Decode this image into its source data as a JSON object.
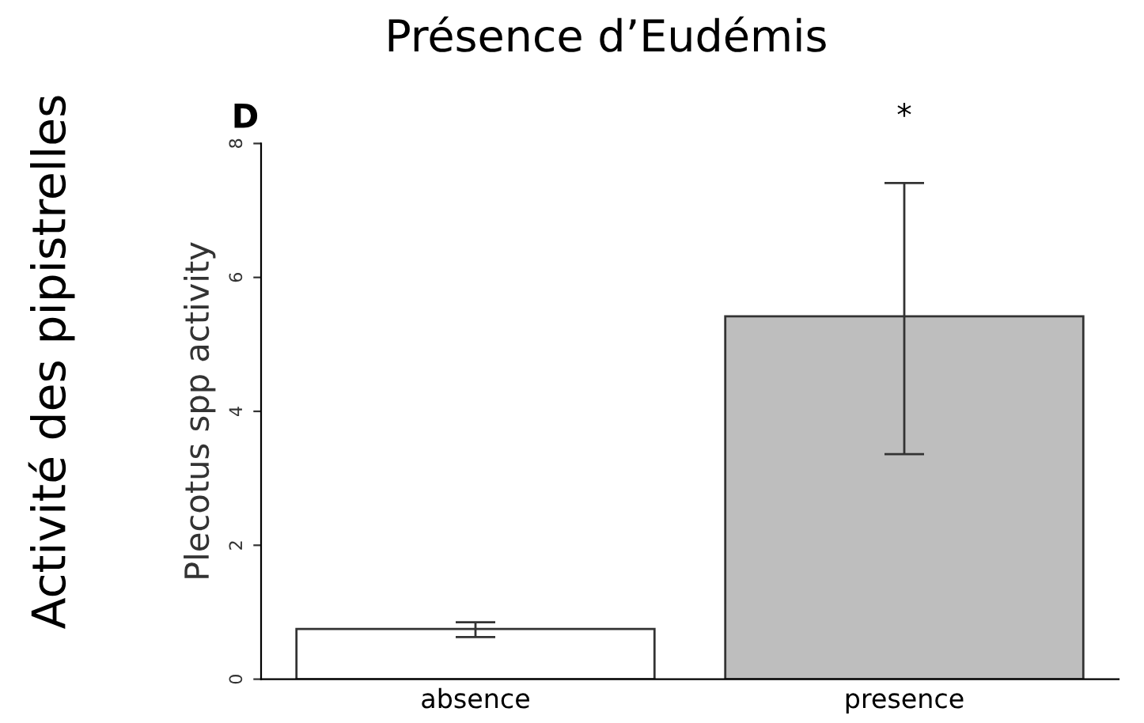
{
  "chart_data": {
    "type": "bar",
    "title": "Présence d’Eudémis",
    "ylabel": "Plecotus spp activity",
    "categories": [
      "absence",
      "presence"
    ],
    "values": [
      0.75,
      5.42
    ],
    "colors": [
      "#ffffff",
      "#bebebe"
    ],
    "errors": [
      [
        0.63,
        0.85
      ],
      [
        3.36,
        7.41
      ]
    ],
    "ylim": [
      0,
      8
    ],
    "yticks": [
      0,
      2,
      4,
      6,
      8
    ],
    "grid": false,
    "annotations": [
      "Activité des pipistrelles",
      "D",
      "*"
    ]
  }
}
